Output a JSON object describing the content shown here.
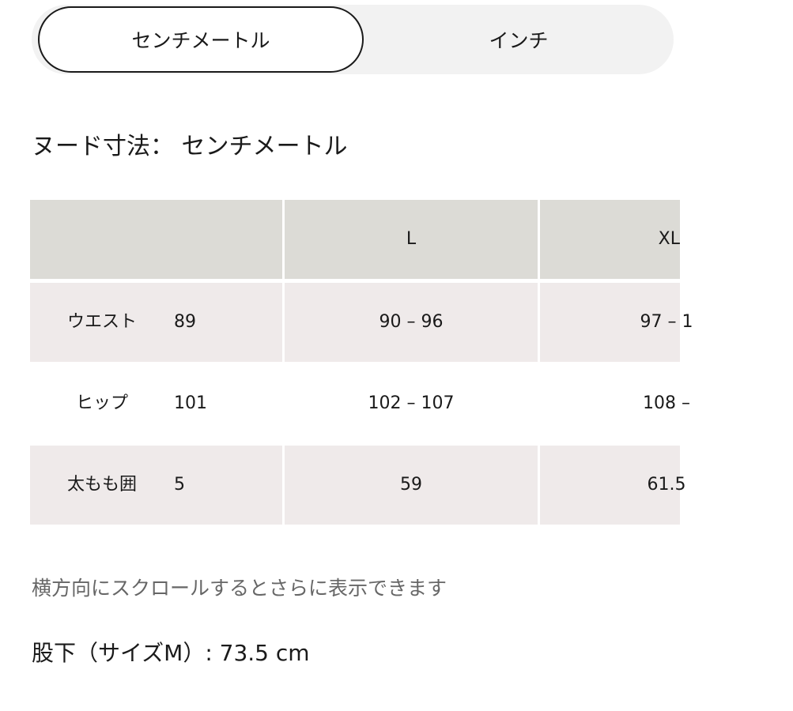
{
  "unit_toggle": {
    "options": [
      "センチメートル",
      "インチ"
    ],
    "selected": "センチメートル"
  },
  "section_title": "ヌード寸法： センチメートル",
  "table": {
    "headers": [
      "",
      "",
      "L",
      "XL"
    ],
    "rows": [
      {
        "label": "ウエスト",
        "values": [
          "89",
          "90 – 96",
          "97 – 1"
        ]
      },
      {
        "label": "ヒップ",
        "values": [
          "101",
          "102 – 107",
          "108 –"
        ]
      },
      {
        "label": "太もも囲",
        "values": [
          "5",
          "59",
          "61.5"
        ]
      }
    ]
  },
  "scroll_hint": "横方向にスクロールするとさらに表示できます",
  "inseam": "股下（サイズM）: 73.5 cm",
  "colors": {
    "header_bg": "#dcdbd6",
    "row_shade": "#efeaea",
    "toggle_bg": "#f2f2f2"
  }
}
